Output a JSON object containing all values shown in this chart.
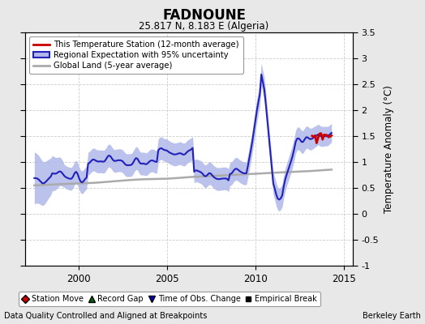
{
  "title": "FADNOUNE",
  "subtitle": "25.817 N, 8.183 E (Algeria)",
  "ylabel": "Temperature Anomaly (°C)",
  "footer_left": "Data Quality Controlled and Aligned at Breakpoints",
  "footer_right": "Berkeley Earth",
  "xlim": [
    1997.0,
    2015.5
  ],
  "ylim": [
    -1.0,
    3.5
  ],
  "yticks": [
    -1,
    -0.5,
    0,
    0.5,
    1,
    1.5,
    2,
    2.5,
    3,
    3.5
  ],
  "xticks": [
    2000,
    2005,
    2010,
    2015
  ],
  "bg_color": "#e8e8e8",
  "plot_bg_color": "#ffffff",
  "regional_color": "#2222bb",
  "regional_fill_color": "#b0b8e8",
  "station_color": "#cc0000",
  "global_color": "#aaaaaa",
  "legend1_items": [
    {
      "label": "This Temperature Station (12-month average)",
      "color": "#cc0000"
    },
    {
      "label": "Regional Expectation with 95% uncertainty",
      "color": "#2222bb",
      "fill": "#b0b8e8"
    },
    {
      "label": "Global Land (5-year average)",
      "color": "#aaaaaa"
    }
  ],
  "legend2_items": [
    {
      "label": "Station Move",
      "marker": "D",
      "color": "#cc0000"
    },
    {
      "label": "Record Gap",
      "marker": "^",
      "color": "#006600"
    },
    {
      "label": "Time of Obs. Change",
      "marker": "v",
      "color": "#0000cc"
    },
    {
      "label": "Empirical Break",
      "marker": "s",
      "color": "#000000"
    }
  ]
}
